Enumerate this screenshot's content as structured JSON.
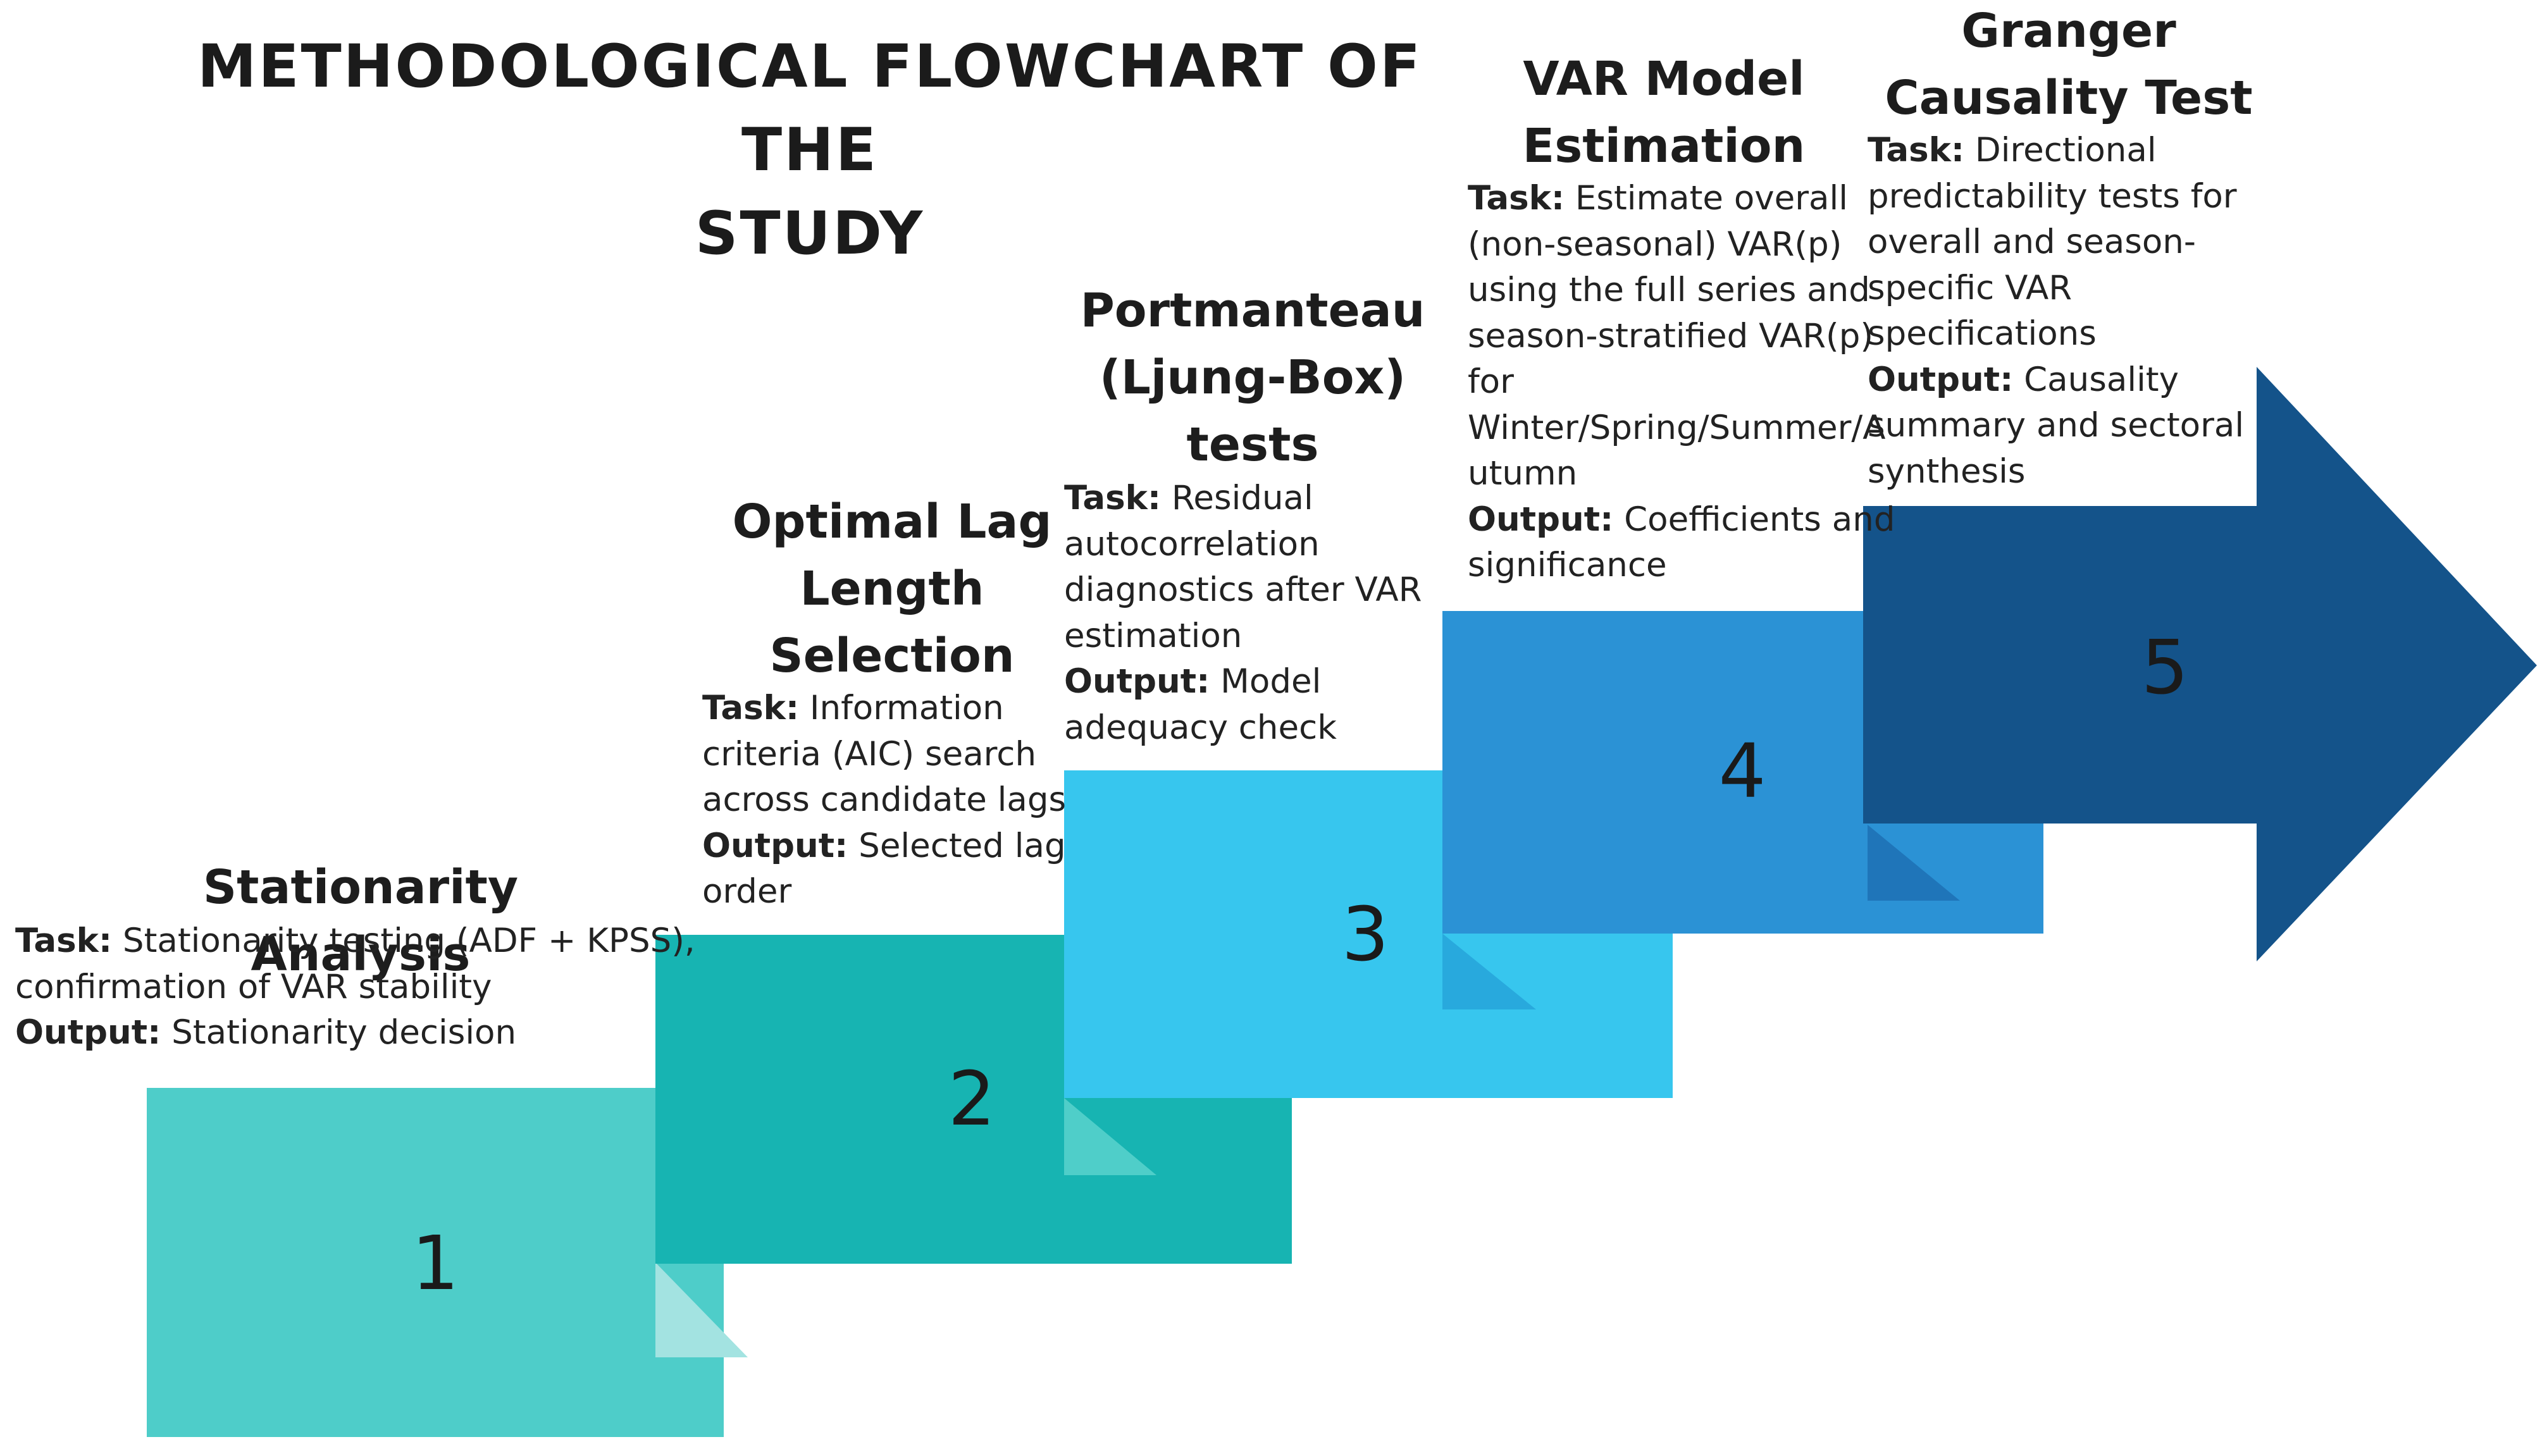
{
  "title_lines": [
    "METHODOLOGICAL FLOWCHART OF THE",
    "STUDY"
  ],
  "colors": {
    "step1": "#4ecdc9",
    "step1_fold": "#a3e3e1",
    "step2": "#17b4b2",
    "step2_fold": "#4fcec9",
    "step3": "#37c6ee",
    "step3_fold": "#28a9dd",
    "step4": "#2b92d5",
    "step4_fold": "#1f75b9",
    "step5": "#14538a"
  },
  "steps": [
    {
      "number": "1",
      "title_lines": [
        "Stationarity Analysis"
      ],
      "task_label": "Task:",
      "output_label": "Output:",
      "lines": [
        {
          "bold": "Task:",
          "text": " Stationarity testing (ADF + KPSS),"
        },
        {
          "bold": "",
          "text": "confirmation of VAR stability"
        },
        {
          "bold": "Output:",
          "text": " Stationarity decision"
        }
      ]
    },
    {
      "number": "2",
      "title_lines": [
        "Optimal Lag",
        "Length",
        "Selection"
      ],
      "lines": [
        {
          "bold": "Task:",
          "text": " Information"
        },
        {
          "bold": "",
          "text": "criteria (AIC) search"
        },
        {
          "bold": "",
          "text": "across candidate lags"
        },
        {
          "bold": "Output:",
          "text": " Selected lag"
        },
        {
          "bold": "",
          "text": "order"
        }
      ]
    },
    {
      "number": "3",
      "title_lines": [
        "Portmanteau",
        "(Ljung-Box)",
        "tests"
      ],
      "lines": [
        {
          "bold": "Task:",
          "text": " Residual"
        },
        {
          "bold": "",
          "text": "autocorrelation"
        },
        {
          "bold": "",
          "text": "diagnostics after VAR"
        },
        {
          "bold": "",
          "text": "estimation"
        },
        {
          "bold": "Output:",
          "text": " Model"
        },
        {
          "bold": "",
          "text": "adequacy check"
        }
      ]
    },
    {
      "number": "4",
      "title_lines": [
        "VAR Model",
        "Estimation"
      ],
      "lines": [
        {
          "bold": "Task:",
          "text": " Estimate overall"
        },
        {
          "bold": "",
          "text": "(non-seasonal) VAR(p)"
        },
        {
          "bold": "",
          "text": "using the full series and"
        },
        {
          "bold": "",
          "text": "season-stratified VAR(p)"
        },
        {
          "bold": "",
          "text": "for"
        },
        {
          "bold": "",
          "text": "Winter/Spring/Summer/A"
        },
        {
          "bold": "",
          "text": "utumn"
        },
        {
          "bold": "Output:",
          "text": " Coefficients and"
        },
        {
          "bold": "",
          "text": "significance"
        }
      ]
    },
    {
      "number": "5",
      "title_lines": [
        "Granger",
        "Causality Test"
      ],
      "lines": [
        {
          "bold": "Task:",
          "text": " Directional"
        },
        {
          "bold": "",
          "text": "predictability tests for"
        },
        {
          "bold": "",
          "text": "overall and season-"
        },
        {
          "bold": "",
          "text": "specific VAR"
        },
        {
          "bold": "",
          "text": "specifications"
        },
        {
          "bold": "Output:",
          "text": " Causality"
        },
        {
          "bold": "",
          "text": "summary and sectoral"
        },
        {
          "bold": "",
          "text": "synthesis"
        }
      ]
    }
  ]
}
